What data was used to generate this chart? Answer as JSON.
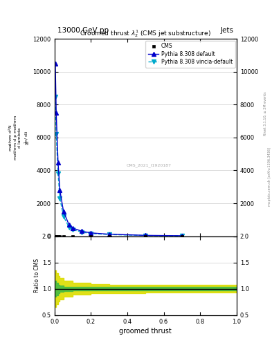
{
  "title": "Groomed thrust $\\lambda_2^1$ (CMS jet substructure)",
  "top_left_label": "13000 GeV pp",
  "top_right_label": "Jets",
  "right_label1": "Rivet 3.1.10, ≥ 2M events",
  "right_label2": "mcplots.cern.ch [arXiv:1306.3436]",
  "watermark": "CMS_2021_I1920187",
  "xlabel": "groomed thrust",
  "ylabel_lines": [
    "mathrm d$^2$N",
    "mathrm d p mathrm d lambda",
    "mathrm d N / mathrm d lambda",
    "1"
  ],
  "ylabel_ratio": "Ratio to CMS",
  "ylim_main": [
    0,
    12000
  ],
  "ylim_ratio": [
    0.5,
    2.0
  ],
  "yticks_main": [
    0,
    2000,
    4000,
    6000,
    8000,
    10000,
    12000
  ],
  "yticks_ratio": [
    0.5,
    1.0,
    1.5,
    2.0
  ],
  "xlim": [
    0,
    1
  ],
  "cms_x": [
    0.005,
    0.01,
    0.02,
    0.03,
    0.05,
    0.1,
    0.2,
    0.3,
    0.5,
    0.7
  ],
  "cms_y": [
    2,
    2,
    2,
    2,
    2,
    2,
    2,
    2,
    2,
    2
  ],
  "pythia_x": [
    0.005,
    0.01,
    0.02,
    0.03,
    0.05,
    0.08,
    0.1,
    0.15,
    0.2,
    0.3,
    0.5,
    0.7
  ],
  "pythia_default_y": [
    10500,
    7500,
    4500,
    2800,
    1500,
    700,
    500,
    300,
    200,
    120,
    50,
    30
  ],
  "pythia_vincia_y": [
    8500,
    6200,
    3800,
    2300,
    1200,
    550,
    400,
    250,
    160,
    100,
    40,
    25
  ],
  "ratio_x": [
    0.0,
    0.01,
    0.02,
    0.03,
    0.05,
    0.1,
    0.2,
    0.3,
    0.5,
    0.7,
    1.0
  ],
  "ratio_green_low": [
    0.85,
    0.88,
    0.92,
    0.94,
    0.96,
    0.97,
    0.97,
    0.97,
    0.97,
    0.97,
    0.97
  ],
  "ratio_green_high": [
    1.15,
    1.12,
    1.08,
    1.06,
    1.04,
    1.03,
    1.03,
    1.03,
    1.03,
    1.03,
    1.03
  ],
  "ratio_yellow_low": [
    0.65,
    0.7,
    0.76,
    0.8,
    0.85,
    0.89,
    0.91,
    0.92,
    0.93,
    0.93,
    0.93
  ],
  "ratio_yellow_high": [
    1.35,
    1.3,
    1.24,
    1.2,
    1.15,
    1.11,
    1.09,
    1.08,
    1.07,
    1.07,
    1.07
  ],
  "color_cms": "#000000",
  "color_pythia_default": "#0000cc",
  "color_pythia_vincia": "#00aacc",
  "color_green_band": "#44bb44",
  "color_yellow_band": "#dddd00",
  "bg_color": "#ffffff",
  "grid_color": "#cccccc"
}
